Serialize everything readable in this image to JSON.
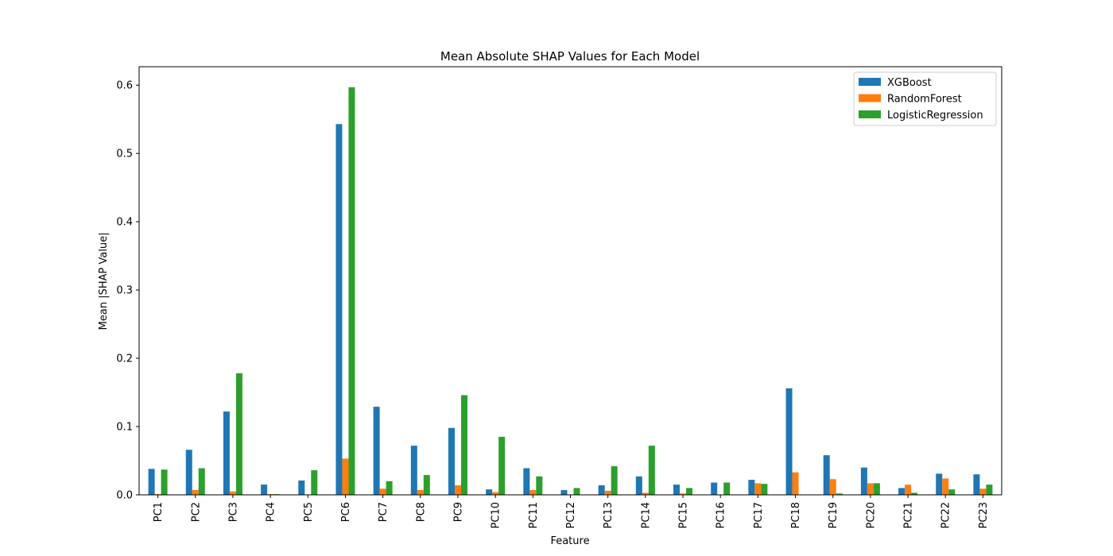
{
  "chart_data": {
    "type": "bar",
    "title": "Mean Absolute SHAP Values for Each Model",
    "xlabel": "Feature",
    "ylabel": "Mean |SHAP Value|",
    "ylim": [
      0,
      0.627
    ],
    "yticks": [
      "0.0",
      "0.1",
      "0.2",
      "0.3",
      "0.4",
      "0.5",
      "0.6"
    ],
    "grid": false,
    "legend_position": "upper right",
    "categories": [
      "PC1",
      "PC2",
      "PC3",
      "PC4",
      "PC5",
      "PC6",
      "PC7",
      "PC8",
      "PC9",
      "PC10",
      "PC11",
      "PC12",
      "PC13",
      "PC14",
      "PC15",
      "PC16",
      "PC17",
      "PC18",
      "PC19",
      "PC20",
      "PC21",
      "PC22",
      "PC23"
    ],
    "series": [
      {
        "name": "XGBoost",
        "color": "#1f77b4",
        "values": [
          0.038,
          0.066,
          0.122,
          0.015,
          0.021,
          0.543,
          0.129,
          0.072,
          0.098,
          0.008,
          0.039,
          0.007,
          0.014,
          0.027,
          0.015,
          0.018,
          0.022,
          0.156,
          0.058,
          0.04,
          0.01,
          0.031,
          0.03
        ]
      },
      {
        "name": "RandomForest",
        "color": "#ff7f0e",
        "values": [
          0.001,
          0.007,
          0.005,
          0.001,
          0.0,
          0.053,
          0.009,
          0.007,
          0.014,
          0.004,
          0.007,
          0.0,
          0.006,
          0.003,
          0.002,
          0.0,
          0.017,
          0.033,
          0.023,
          0.017,
          0.015,
          0.024,
          0.009
        ]
      },
      {
        "name": "LogisticRegression",
        "color": "#2ca02c",
        "values": [
          0.037,
          0.039,
          0.178,
          0.001,
          0.036,
          0.597,
          0.02,
          0.029,
          0.146,
          0.085,
          0.027,
          0.01,
          0.042,
          0.072,
          0.01,
          0.018,
          0.016,
          0.0,
          0.002,
          0.017,
          0.003,
          0.008,
          0.015
        ]
      }
    ]
  }
}
